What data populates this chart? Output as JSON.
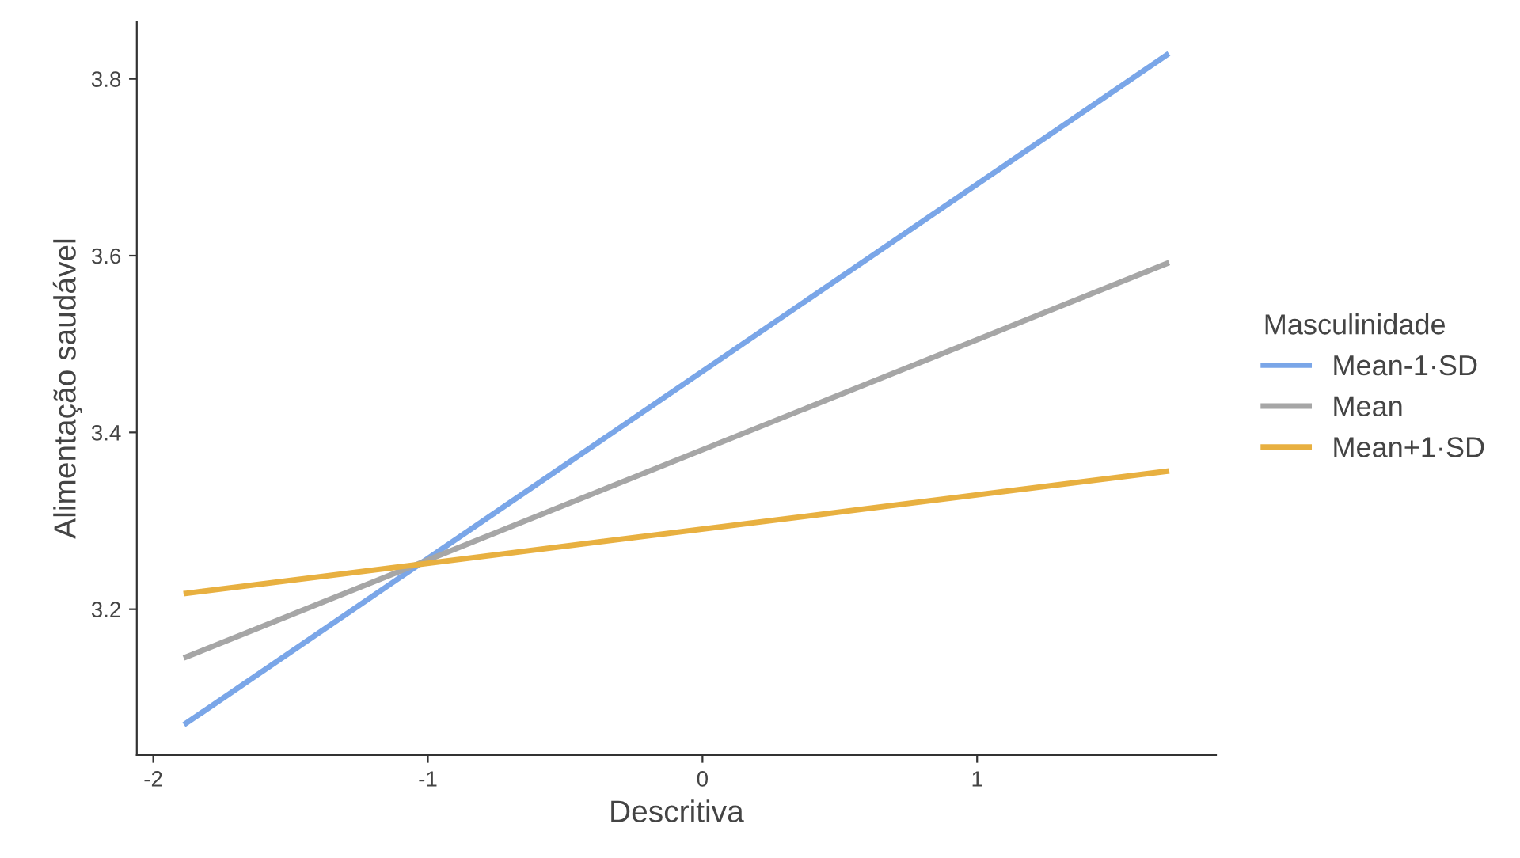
{
  "chart_data": {
    "type": "line",
    "xlabel": "Descritiva",
    "ylabel": "Alimentação saudável",
    "legend_title": "Masculinidade",
    "legend": "right",
    "grid": false,
    "marker": "none",
    "line_style": "solid",
    "x": [
      -1.88,
      1.69
    ],
    "series": [
      {
        "name": "Mean-1·SD",
        "color": "#7aa6e8",
        "values": [
          3.071,
          3.827
        ]
      },
      {
        "name": "Mean",
        "color": "#a6a6a6",
        "values": [
          3.146,
          3.591
        ]
      },
      {
        "name": "Mean+1·SD",
        "color": "#e8b040",
        "values": [
          3.218,
          3.356
        ]
      }
    ],
    "xlim": [
      -2.06,
      1.87
    ],
    "ylim": [
      3.035,
      3.865
    ],
    "xticks": [
      -2,
      -1,
      0,
      1
    ],
    "yticks": [
      3.2,
      3.4,
      3.6,
      3.8
    ]
  }
}
